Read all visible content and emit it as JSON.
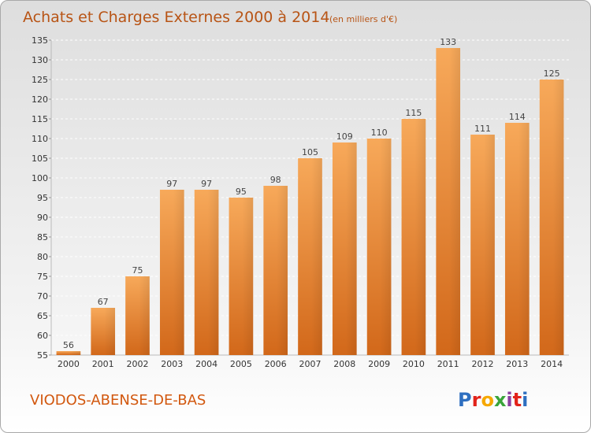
{
  "header": {
    "title": "Achats et Charges Externes 2000 à 2014",
    "unit": "(en milliers d'€)"
  },
  "footer": {
    "place": "VIODOS-ABENSE-DE-BAS",
    "logo": "Proxiti",
    "logo_colors": [
      "#2e6fc0",
      "#e2231a",
      "#f6a800",
      "#3aa43a",
      "#8b3fa0",
      "#e2231a",
      "#2e6fc0"
    ]
  },
  "colors": {
    "bar_light": "#f7a95a",
    "bar_dark": "#d2681a",
    "title": "#b85415",
    "grid": "#ffffff"
  },
  "chart_data": {
    "type": "bar",
    "title": "Achats et Charges Externes 2000 à 2014",
    "subtitle": "(en milliers d'€)",
    "xlabel": "",
    "ylabel": "",
    "categories": [
      "2000",
      "2001",
      "2002",
      "2003",
      "2004",
      "2005",
      "2006",
      "2007",
      "2008",
      "2009",
      "2010",
      "2011",
      "2012",
      "2013",
      "2014"
    ],
    "values": [
      56,
      67,
      75,
      97,
      97,
      95,
      98,
      105,
      109,
      110,
      115,
      133,
      111,
      114,
      125
    ],
    "data_labels": [
      "56",
      "67",
      "75",
      "97",
      "97",
      "95",
      "98",
      "105",
      "109",
      "110",
      "115",
      "133",
      "111",
      "114",
      "125"
    ],
    "ylim": [
      55,
      135
    ],
    "yticks": [
      55,
      60,
      65,
      70,
      75,
      80,
      85,
      90,
      95,
      100,
      105,
      110,
      115,
      120,
      125,
      130,
      135
    ],
    "ytick_labels": [
      "55",
      "60",
      "65",
      "70",
      "75",
      "80",
      "85",
      "90",
      "95",
      "100",
      "105",
      "110",
      "115",
      "120",
      "125",
      "130",
      "135"
    ],
    "grid": true,
    "legend": "none"
  }
}
